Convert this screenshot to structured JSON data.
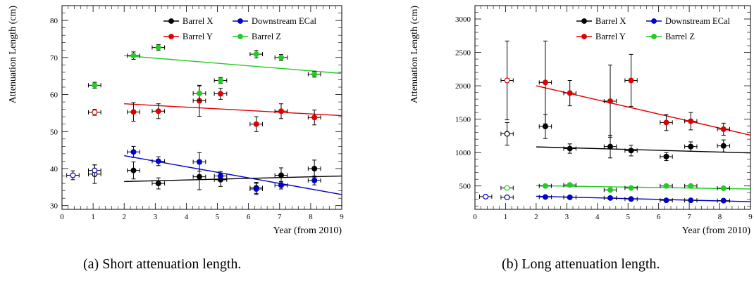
{
  "captions": {
    "a": "(a) Short attenuation length.",
    "b": "(b) Long attenuation length."
  },
  "chart_data": [
    {
      "type": "scatter",
      "ylabel": "Attenuation Length (cm)",
      "xlabel": "Year (from 2010)",
      "xlim": [
        0,
        9
      ],
      "ylim": [
        29,
        84
      ],
      "xticks": [
        0,
        1,
        2,
        3,
        4,
        5,
        6,
        7,
        8,
        9
      ],
      "yticks": [
        30,
        40,
        50,
        60,
        70,
        80
      ],
      "legend_position": "top-right",
      "series": [
        {
          "name": "Barrel X",
          "color": "#000000",
          "x": [
            1.05,
            2.3,
            3.1,
            4.42,
            5.1,
            6.25,
            7.05,
            8.12
          ],
          "y": [
            38.5,
            39.5,
            36.0,
            37.8,
            37.0,
            34.8,
            38.2,
            40.0
          ],
          "yerr": [
            2.5,
            2.3,
            1.5,
            3.5,
            1.8,
            1.5,
            2.0,
            2.3
          ],
          "xerr": 0.2,
          "open": [
            true,
            false,
            false,
            false,
            false,
            false,
            false,
            false
          ],
          "fit": [
            [
              2.0,
              36.5
            ],
            [
              9.0,
              38.0
            ]
          ]
        },
        {
          "name": "Downstream ECal",
          "color": "#0000cc",
          "x": [
            0.35,
            1.05,
            2.3,
            3.1,
            4.42,
            5.1,
            6.25,
            7.05,
            8.12
          ],
          "y": [
            38.2,
            39.5,
            44.5,
            42.0,
            41.8,
            38.0,
            34.5,
            35.5,
            36.8
          ],
          "yerr": [
            1.2,
            1.5,
            1.5,
            1.2,
            2.5,
            1.2,
            1.5,
            1.0,
            1.2
          ],
          "xerr": 0.2,
          "open": [
            true,
            true,
            false,
            false,
            false,
            false,
            false,
            false,
            false
          ],
          "fit": [
            [
              2.0,
              43.5
            ],
            [
              9.0,
              33.0
            ]
          ]
        },
        {
          "name": "Barrel Y",
          "color": "#dd0000",
          "x": [
            1.05,
            2.3,
            3.1,
            4.42,
            5.1,
            6.25,
            7.05,
            8.12
          ],
          "y": [
            55.2,
            55.3,
            55.5,
            58.3,
            60.2,
            52.0,
            55.5,
            53.8
          ],
          "yerr": [
            0.8,
            2.5,
            2.0,
            4.2,
            1.5,
            2.0,
            2.0,
            2.0
          ],
          "xerr": 0.2,
          "open": [
            true,
            false,
            false,
            false,
            false,
            false,
            false,
            false
          ],
          "fit": [
            [
              2.0,
              57.5
            ],
            [
              9.0,
              54.3
            ]
          ]
        },
        {
          "name": "Barrel Z",
          "color": "#22cc22",
          "x": [
            1.05,
            2.3,
            3.1,
            4.42,
            5.1,
            6.25,
            7.05,
            8.12
          ],
          "y": [
            62.5,
            70.5,
            72.7,
            60.3,
            63.8,
            70.9,
            70.0,
            65.5
          ],
          "yerr": [
            0.8,
            1.0,
            0.8,
            2.0,
            0.8,
            1.0,
            0.8,
            0.8
          ],
          "xerr": 0.2,
          "open": [
            false,
            false,
            false,
            false,
            false,
            false,
            false,
            false
          ],
          "fit": [
            [
              2.0,
              70.5
            ],
            [
              9.0,
              65.7
            ]
          ]
        }
      ]
    },
    {
      "type": "scatter",
      "ylabel": "Attenuation Length (cm)",
      "xlabel": "Year (from 2010)",
      "xlim": [
        0,
        9
      ],
      "ylim": [
        150,
        3200
      ],
      "xticks": [
        0,
        1,
        2,
        3,
        4,
        5,
        6,
        7,
        8,
        9
      ],
      "yticks": [
        500,
        1000,
        1500,
        2000,
        2500,
        3000
      ],
      "legend_position": "top-right",
      "series": [
        {
          "name": "Barrel X",
          "color": "#000000",
          "x": [
            1.05,
            2.3,
            3.1,
            4.42,
            5.1,
            6.25,
            7.05,
            8.12
          ],
          "y": [
            1280,
            1390,
            1060,
            1090,
            1030,
            940,
            1090,
            1100
          ],
          "yerr": [
            170,
            180,
            70,
            170,
            80,
            60,
            70,
            90
          ],
          "xerr": 0.2,
          "open": [
            true,
            false,
            false,
            false,
            false,
            false,
            false,
            false
          ],
          "fit": [
            [
              2.0,
              1085
            ],
            [
              9.0,
              995
            ]
          ]
        },
        {
          "name": "Downstream ECal",
          "color": "#0000cc",
          "x": [
            0.35,
            1.05,
            2.3,
            3.1,
            4.42,
            5.1,
            6.25,
            7.05,
            8.12
          ],
          "y": [
            340,
            330,
            335,
            330,
            320,
            305,
            285,
            285,
            280
          ],
          "yerr": [
            20,
            20,
            20,
            20,
            20,
            20,
            20,
            20,
            20
          ],
          "xerr": 0.2,
          "open": [
            true,
            true,
            false,
            false,
            false,
            false,
            false,
            false,
            false
          ],
          "fit": [
            [
              2.0,
              345
            ],
            [
              9.0,
              265
            ]
          ]
        },
        {
          "name": "Barrel Y",
          "color": "#dd0000",
          "x": [
            1.05,
            2.3,
            3.1,
            4.42,
            5.1,
            6.25,
            7.05,
            8.12
          ],
          "y": [
            2080,
            2050,
            1890,
            1770,
            2080,
            1450,
            1470,
            1350
          ],
          "yerr": [
            590,
            620,
            190,
            540,
            390,
            120,
            130,
            90
          ],
          "xerr": 0.2,
          "open": [
            true,
            false,
            false,
            false,
            false,
            false,
            false,
            false
          ],
          "fit": [
            [
              2.0,
              2000
            ],
            [
              9.0,
              1260
            ]
          ]
        },
        {
          "name": "Barrel Z",
          "color": "#22cc22",
          "x": [
            1.05,
            2.3,
            3.1,
            4.42,
            5.1,
            6.25,
            7.05,
            8.12
          ],
          "y": [
            470,
            500,
            515,
            440,
            470,
            500,
            500,
            465
          ],
          "yerr": [
            20,
            20,
            20,
            20,
            20,
            20,
            20,
            20
          ],
          "xerr": 0.2,
          "open": [
            true,
            false,
            false,
            false,
            false,
            false,
            false,
            false
          ],
          "fit": [
            [
              2.0,
              505
            ],
            [
              9.0,
              455
            ]
          ]
        }
      ]
    }
  ]
}
